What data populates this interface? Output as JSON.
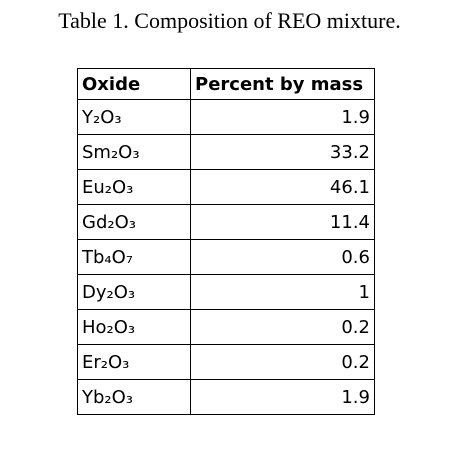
{
  "header": {
    "title": "Table 1. Composition of REO mixture."
  },
  "table": {
    "columns": [
      "Oxide",
      "Percent by mass"
    ],
    "rows": [
      [
        "Y₂O₃",
        1.9
      ],
      [
        "Sm₂O₃",
        33.2
      ],
      [
        "Eu₂O₃",
        46.1
      ],
      [
        "Gd₂O₃",
        11.4
      ],
      [
        "Tb₄O₇",
        0.6
      ],
      [
        "Dy₂O₃",
        1
      ],
      [
        "Ho₂O₃",
        0.2
      ],
      [
        "Er₂O₃",
        0.2
      ],
      [
        "Yb₂O₃",
        1.9
      ]
    ]
  }
}
